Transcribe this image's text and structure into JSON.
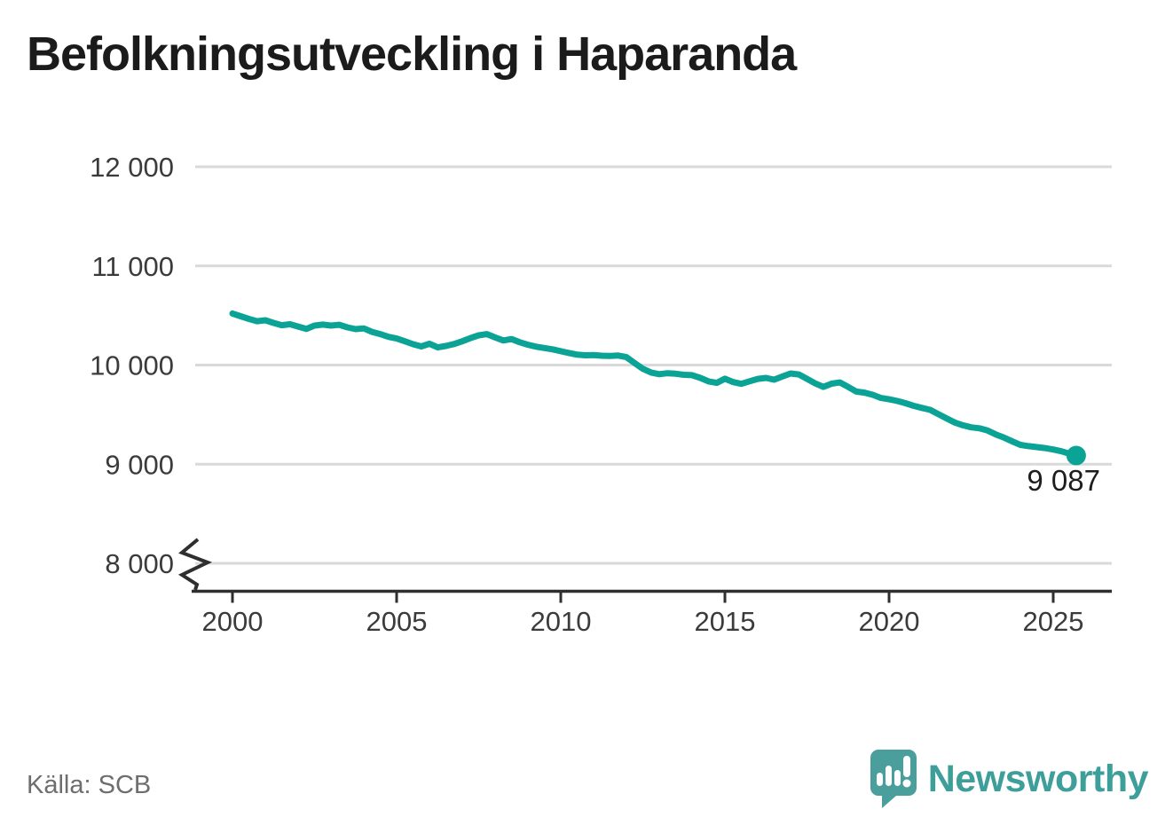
{
  "title": "Befolkningsutveckling i Haparanda",
  "source": {
    "label": "Källa: SCB"
  },
  "branding": {
    "name": "Newsworthy",
    "icon": "newsworthy-speech-bubble-chart-icon",
    "icon_color": "#4a9e9b",
    "text_color": "#3d9e9a"
  },
  "chart_data": {
    "type": "line",
    "title": "Befolkningsutveckling i Haparanda",
    "xlabel": "",
    "ylabel": "",
    "xlim": [
      1998.8,
      2026.8
    ],
    "ylim": [
      8000,
      12000
    ],
    "axis_break_at_bottom": true,
    "grid": "horizontal",
    "line_color": "#0aa396",
    "x_ticks": [
      {
        "value": 2000,
        "label": "2000"
      },
      {
        "value": 2005,
        "label": "2005"
      },
      {
        "value": 2010,
        "label": "2010"
      },
      {
        "value": 2015,
        "label": "2015"
      },
      {
        "value": 2020,
        "label": "2020"
      },
      {
        "value": 2025,
        "label": "2025"
      }
    ],
    "y_ticks": [
      {
        "value": 12000,
        "label": "12 000"
      },
      {
        "value": 11000,
        "label": "11 000"
      },
      {
        "value": 10000,
        "label": "10 000"
      },
      {
        "value": 9000,
        "label": "9 000"
      },
      {
        "value": 8000,
        "label": "8 000"
      }
    ],
    "end_point": {
      "x": 2025.7,
      "y": 9087,
      "label": "9 087"
    },
    "series": [
      {
        "name": "Befolkning",
        "points": [
          [
            2000.0,
            10520
          ],
          [
            2000.25,
            10492
          ],
          [
            2000.5,
            10465
          ],
          [
            2000.75,
            10442
          ],
          [
            2001.0,
            10452
          ],
          [
            2001.25,
            10425
          ],
          [
            2001.5,
            10402
          ],
          [
            2001.75,
            10412
          ],
          [
            2002.0,
            10388
          ],
          [
            2002.25,
            10365
          ],
          [
            2002.5,
            10398
          ],
          [
            2002.75,
            10408
          ],
          [
            2003.0,
            10398
          ],
          [
            2003.25,
            10406
          ],
          [
            2003.5,
            10380
          ],
          [
            2003.75,
            10362
          ],
          [
            2004.0,
            10370
          ],
          [
            2004.25,
            10335
          ],
          [
            2004.5,
            10312
          ],
          [
            2004.75,
            10285
          ],
          [
            2005.0,
            10268
          ],
          [
            2005.25,
            10240
          ],
          [
            2005.5,
            10210
          ],
          [
            2005.75,
            10188
          ],
          [
            2006.0,
            10215
          ],
          [
            2006.25,
            10178
          ],
          [
            2006.5,
            10192
          ],
          [
            2006.75,
            10212
          ],
          [
            2007.0,
            10240
          ],
          [
            2007.25,
            10272
          ],
          [
            2007.5,
            10300
          ],
          [
            2007.75,
            10312
          ],
          [
            2008.0,
            10278
          ],
          [
            2008.25,
            10248
          ],
          [
            2008.5,
            10262
          ],
          [
            2008.75,
            10230
          ],
          [
            2009.0,
            10205
          ],
          [
            2009.25,
            10185
          ],
          [
            2009.5,
            10172
          ],
          [
            2009.75,
            10158
          ],
          [
            2010.0,
            10140
          ],
          [
            2010.25,
            10122
          ],
          [
            2010.5,
            10105
          ],
          [
            2010.75,
            10098
          ],
          [
            2011.0,
            10100
          ],
          [
            2011.25,
            10094
          ],
          [
            2011.5,
            10092
          ],
          [
            2011.75,
            10096
          ],
          [
            2012.0,
            10080
          ],
          [
            2012.25,
            10020
          ],
          [
            2012.5,
            9962
          ],
          [
            2012.75,
            9925
          ],
          [
            2013.0,
            9908
          ],
          [
            2013.25,
            9918
          ],
          [
            2013.5,
            9912
          ],
          [
            2013.75,
            9902
          ],
          [
            2014.0,
            9898
          ],
          [
            2014.25,
            9870
          ],
          [
            2014.5,
            9835
          ],
          [
            2014.75,
            9820
          ],
          [
            2015.0,
            9862
          ],
          [
            2015.25,
            9828
          ],
          [
            2015.5,
            9810
          ],
          [
            2015.75,
            9836
          ],
          [
            2016.0,
            9860
          ],
          [
            2016.25,
            9870
          ],
          [
            2016.5,
            9852
          ],
          [
            2016.75,
            9885
          ],
          [
            2017.0,
            9915
          ],
          [
            2017.25,
            9905
          ],
          [
            2017.5,
            9860
          ],
          [
            2017.75,
            9815
          ],
          [
            2018.0,
            9780
          ],
          [
            2018.25,
            9812
          ],
          [
            2018.5,
            9825
          ],
          [
            2018.75,
            9780
          ],
          [
            2019.0,
            9732
          ],
          [
            2019.25,
            9722
          ],
          [
            2019.5,
            9700
          ],
          [
            2019.75,
            9668
          ],
          [
            2020.0,
            9655
          ],
          [
            2020.25,
            9638
          ],
          [
            2020.5,
            9615
          ],
          [
            2020.75,
            9588
          ],
          [
            2021.0,
            9568
          ],
          [
            2021.25,
            9548
          ],
          [
            2021.5,
            9505
          ],
          [
            2021.75,
            9462
          ],
          [
            2022.0,
            9420
          ],
          [
            2022.25,
            9392
          ],
          [
            2022.5,
            9372
          ],
          [
            2022.75,
            9362
          ],
          [
            2023.0,
            9340
          ],
          [
            2023.25,
            9300
          ],
          [
            2023.5,
            9268
          ],
          [
            2023.75,
            9230
          ],
          [
            2024.0,
            9195
          ],
          [
            2024.25,
            9182
          ],
          [
            2024.5,
            9172
          ],
          [
            2024.75,
            9162
          ],
          [
            2025.0,
            9148
          ],
          [
            2025.25,
            9130
          ],
          [
            2025.45,
            9110
          ],
          [
            2025.6,
            9055
          ],
          [
            2025.7,
            9087
          ]
        ]
      }
    ]
  }
}
